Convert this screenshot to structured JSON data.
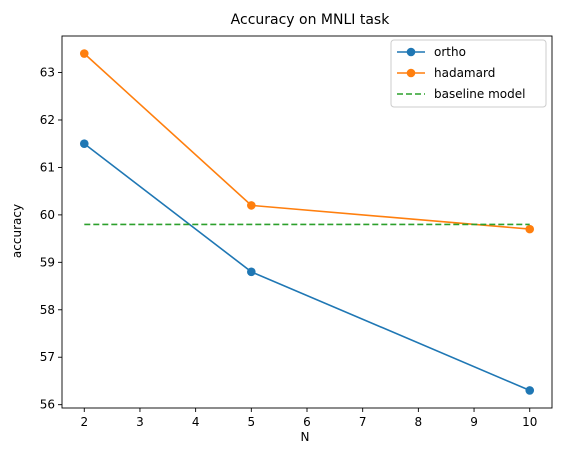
{
  "chart_data": {
    "type": "line",
    "title": "Accuracy on MNLI task",
    "xlabel": "N",
    "ylabel": "accuracy",
    "xlim": [
      1.6,
      10.4
    ],
    "ylim": [
      55.93,
      63.77
    ],
    "xticks": [
      2,
      3,
      4,
      5,
      6,
      7,
      8,
      9,
      10
    ],
    "yticks": [
      56,
      57,
      58,
      59,
      60,
      61,
      62,
      63
    ],
    "grid": false,
    "legend_position": "top-right",
    "series": [
      {
        "name": "ortho",
        "x": [
          2,
          5,
          10
        ],
        "y": [
          61.5,
          58.8,
          56.3
        ],
        "color": "#1f77b4",
        "style": "solid",
        "marker": "circle"
      },
      {
        "name": "hadamard",
        "x": [
          2,
          5,
          10
        ],
        "y": [
          63.4,
          60.2,
          59.7
        ],
        "color": "#ff7f0e",
        "style": "solid",
        "marker": "circle"
      },
      {
        "name": "baseline model",
        "x": [
          2,
          10
        ],
        "y": [
          59.8,
          59.8
        ],
        "color": "#2ca02c",
        "style": "dashed",
        "marker": "none"
      }
    ]
  }
}
